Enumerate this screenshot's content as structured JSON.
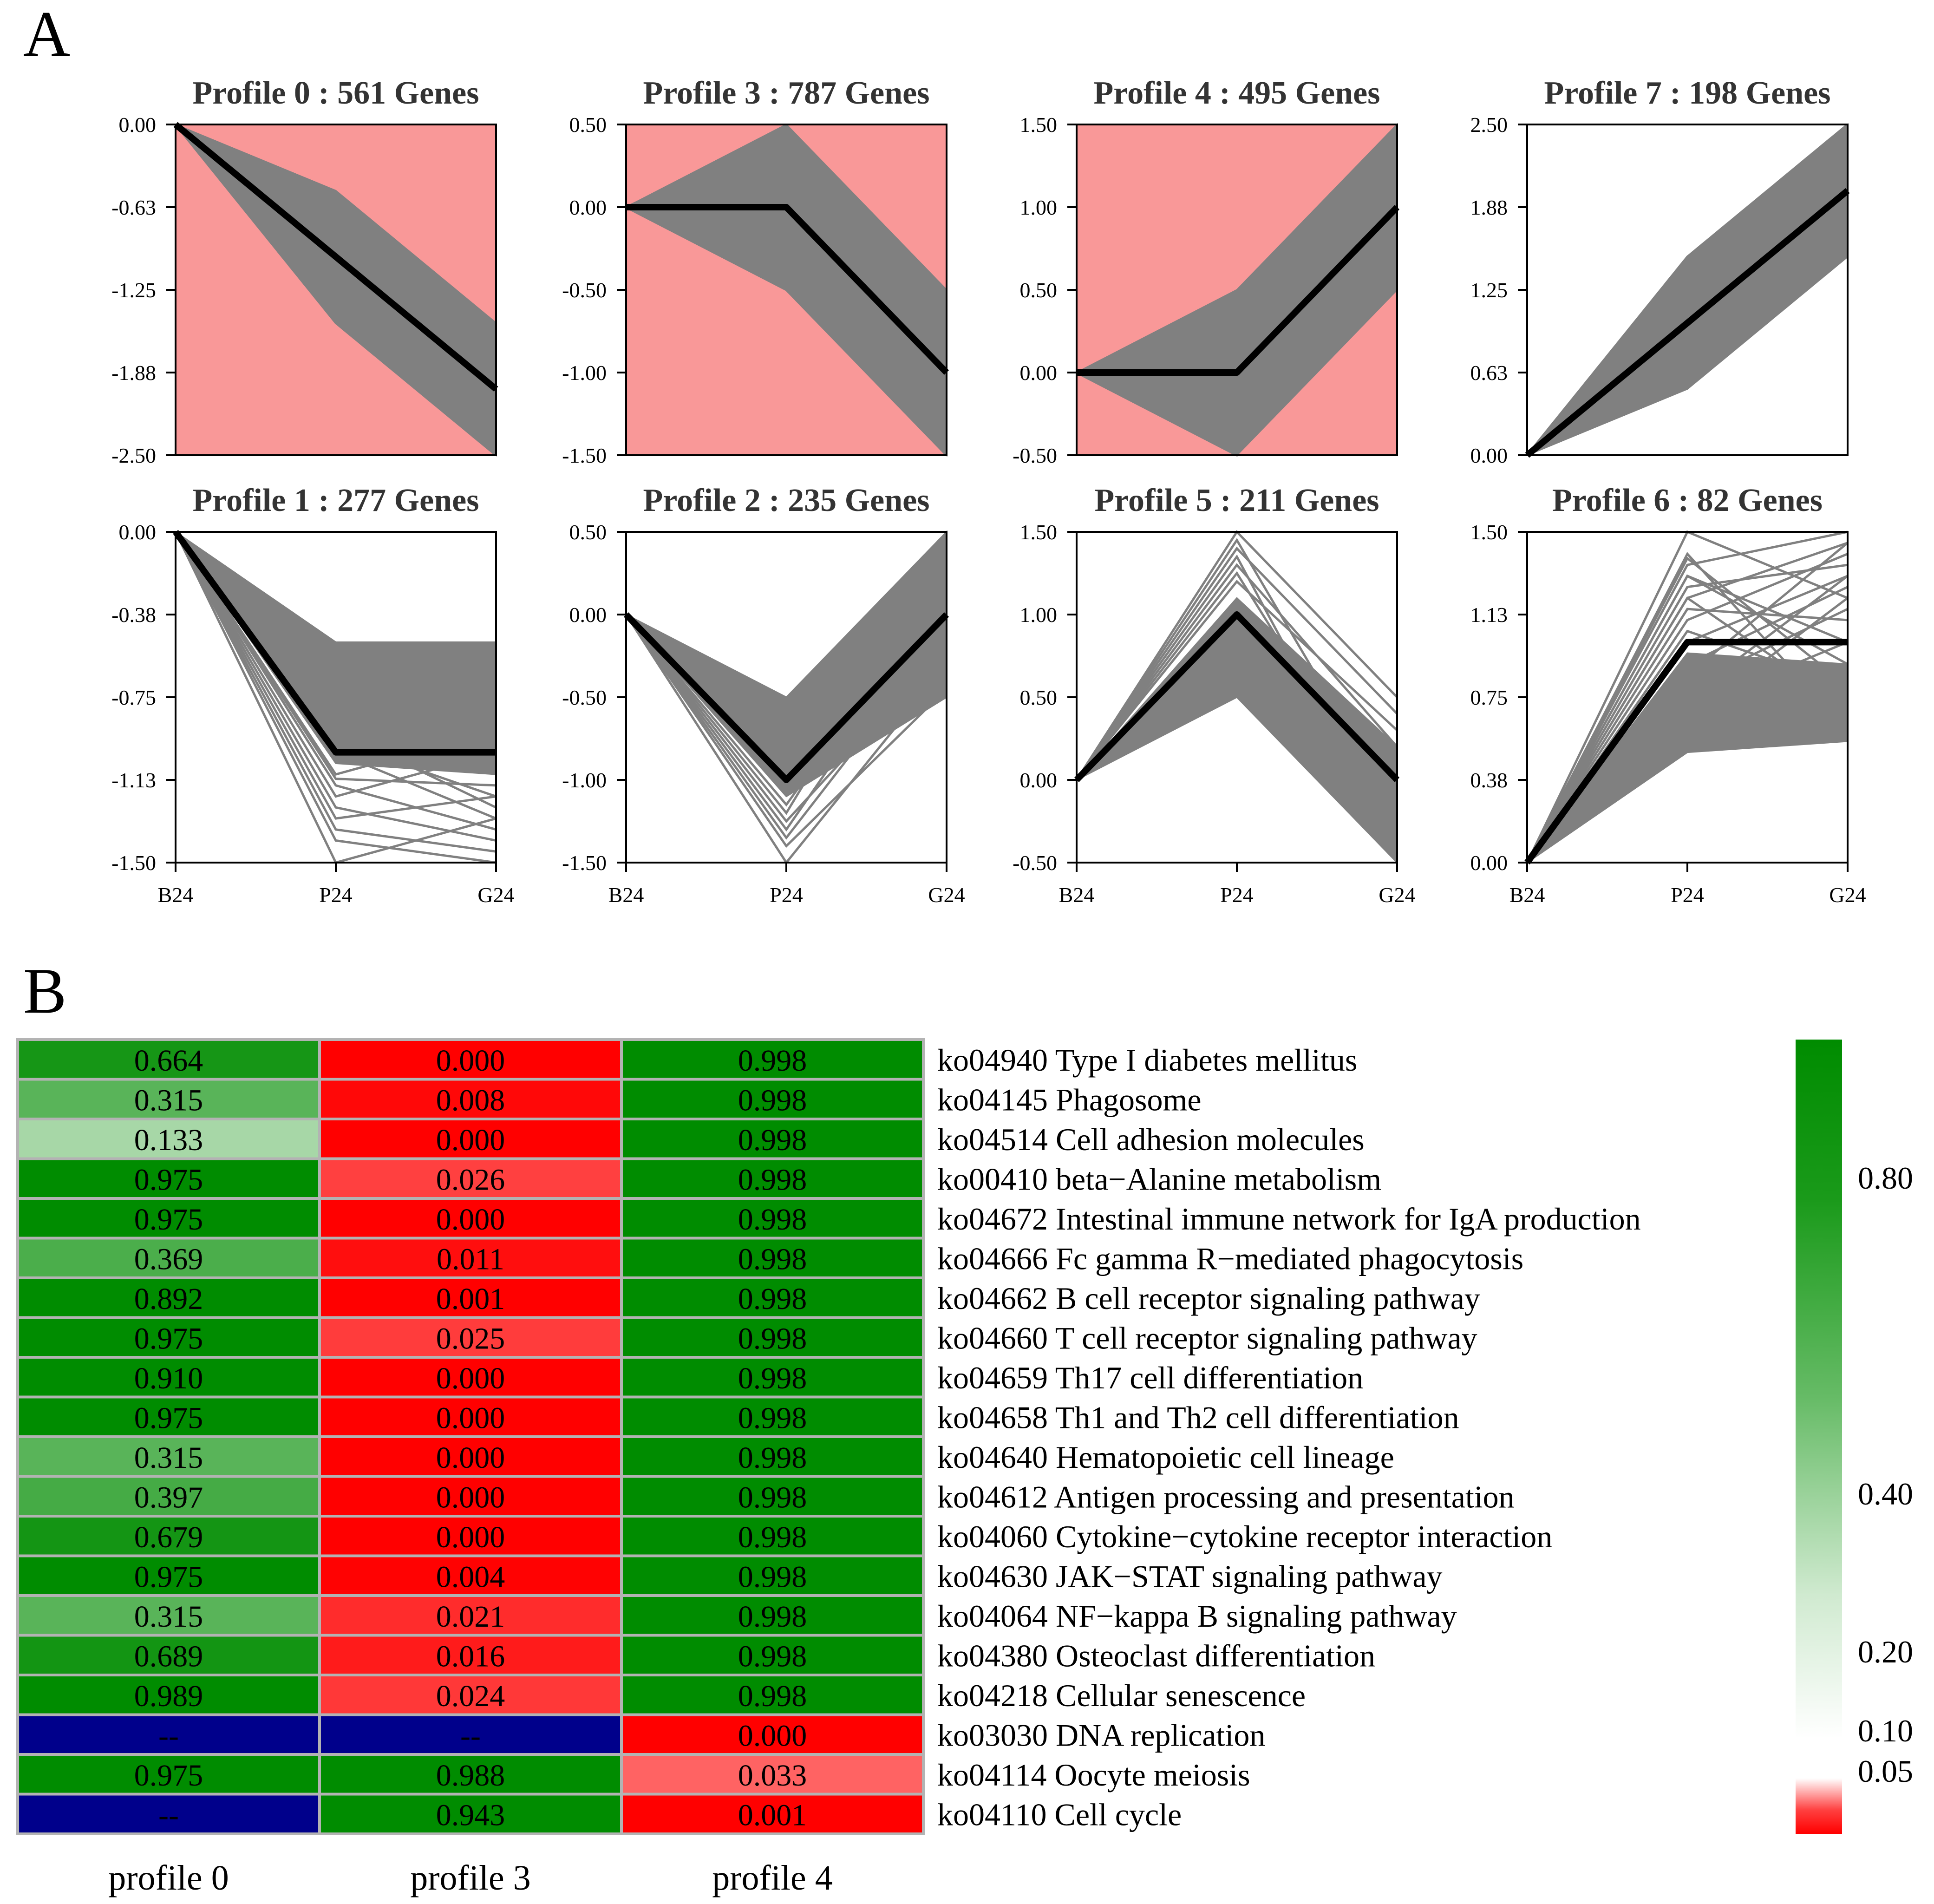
{
  "panel_labels": {
    "a": "A",
    "b": "B"
  },
  "colors": {
    "sig_background": "#f99898",
    "gene_line": "#808080",
    "model_line": "#000000",
    "green_strong": "#008c00",
    "red_strong": "#ff0000",
    "na_blue": "#00008b",
    "cell_border": "#b3b3b3"
  },
  "chart_data": [
    {
      "type": "line",
      "id": "profile-0",
      "title": "Profile 0 : 561 Genes",
      "significant": true,
      "x": [
        "B24",
        "P24",
        "G24"
      ],
      "model": [
        0,
        -1,
        -2
      ],
      "ylim": [
        -2.5,
        0
      ],
      "yticks": [
        "0.00",
        "-0.63",
        "-1.25",
        "-1.88",
        "-2.50"
      ],
      "envelope": {
        "upper": [
          0,
          -0.5,
          -1.5
        ],
        "lower": [
          0,
          -1.5,
          -2.5
        ]
      },
      "lines": [
        [
          0,
          -1.5,
          -2.5
        ],
        [
          0,
          -1.3,
          -2.4
        ],
        [
          0,
          -1.2,
          -2.2
        ],
        [
          0,
          -1.4,
          -1.9
        ],
        [
          0,
          -1.1,
          -2.0
        ],
        [
          0,
          -1.3,
          -2.3
        ],
        [
          0,
          -0.9,
          -2.1
        ],
        [
          0,
          -1.2,
          -2.45
        ]
      ]
    },
    {
      "type": "line",
      "id": "profile-3",
      "title": "Profile 3 : 787 Genes",
      "significant": true,
      "x": [
        "B24",
        "P24",
        "G24"
      ],
      "model": [
        0,
        0,
        -1
      ],
      "ylim": [
        -1.5,
        0.5
      ],
      "yticks": [
        "0.50",
        "0.00",
        "-0.50",
        "-1.00",
        "-1.50"
      ],
      "envelope": {
        "upper": [
          0,
          0.5,
          -0.5
        ],
        "lower": [
          0,
          -0.5,
          -1.5
        ]
      },
      "lines": [
        [
          0,
          -0.5,
          -1.5
        ],
        [
          0,
          -0.45,
          -1.4
        ],
        [
          0,
          -0.4,
          -1.2
        ],
        [
          0,
          0.45,
          -0.7
        ],
        [
          0,
          -0.3,
          -1.3
        ],
        [
          0,
          0.3,
          -0.9
        ],
        [
          0,
          -0.2,
          -1.45
        ]
      ]
    },
    {
      "type": "line",
      "id": "profile-4",
      "title": "Profile 4 : 495 Genes",
      "significant": true,
      "x": [
        "B24",
        "P24",
        "G24"
      ],
      "model": [
        0,
        0,
        1
      ],
      "ylim": [
        -0.5,
        1.5
      ],
      "yticks": [
        "1.50",
        "1.00",
        "0.50",
        "0.00",
        "-0.50"
      ],
      "envelope": {
        "upper": [
          0,
          0.5,
          1.5
        ],
        "lower": [
          0,
          -0.5,
          0.5
        ]
      },
      "lines": [
        [
          0,
          -0.5,
          1.0
        ],
        [
          0,
          -0.45,
          0.7
        ],
        [
          0,
          -0.4,
          1.2
        ],
        [
          0,
          -0.35,
          0.9
        ],
        [
          0,
          -0.2,
          1.4
        ],
        [
          0,
          -0.3,
          0.6
        ],
        [
          0,
          0.3,
          1.45
        ]
      ]
    },
    {
      "type": "line",
      "id": "profile-7",
      "title": "Profile 7 : 198 Genes",
      "significant": false,
      "x": [
        "B24",
        "P24",
        "G24"
      ],
      "model": [
        0,
        1,
        2
      ],
      "ylim": [
        0,
        2.5
      ],
      "yticks": [
        "2.50",
        "1.88",
        "1.25",
        "0.63",
        "0.00"
      ],
      "envelope": {
        "upper": [
          0,
          1.5,
          2.5
        ],
        "lower": [
          0,
          0.5,
          1.5
        ]
      },
      "lines": [
        [
          0,
          1.5,
          2.5
        ],
        [
          0,
          1.4,
          2.2
        ],
        [
          0,
          1.2,
          2.45
        ],
        [
          0,
          1.3,
          1.9
        ],
        [
          0,
          1.1,
          2.3
        ],
        [
          0,
          0.9,
          2.1
        ],
        [
          0,
          1.45,
          2.4
        ]
      ]
    },
    {
      "type": "line",
      "id": "profile-1",
      "title": "Profile 1 : 277 Genes",
      "significant": false,
      "x": [
        "B24",
        "P24",
        "G24"
      ],
      "model": [
        0,
        -1,
        -1
      ],
      "ylim": [
        -1.5,
        0
      ],
      "yticks": [
        "0.00",
        "-0.38",
        "-0.75",
        "-1.13",
        "-1.50"
      ],
      "envelope": {
        "upper": [
          0,
          -0.5,
          -0.5
        ],
        "lower": [
          0,
          -1.05,
          -1.1
        ]
      },
      "lines": [
        [
          0,
          -1.5,
          -1.3
        ],
        [
          0,
          -1.4,
          -1.5
        ],
        [
          0,
          -1.3,
          -1.2
        ],
        [
          0,
          -1.25,
          -1.4
        ],
        [
          0,
          -1.2,
          -1.0
        ],
        [
          0,
          -1.15,
          -1.35
        ],
        [
          0,
          -1.1,
          -0.9
        ],
        [
          0,
          -1.35,
          -1.45
        ],
        [
          0,
          -0.9,
          -1.25
        ],
        [
          0,
          -1.0,
          -1.3
        ],
        [
          0,
          -1.12,
          -1.15
        ],
        [
          0,
          -0.85,
          -0.95
        ],
        [
          0,
          -0.95,
          -1.2
        ]
      ]
    },
    {
      "type": "line",
      "id": "profile-2",
      "title": "Profile 2 : 235 Genes",
      "significant": false,
      "x": [
        "B24",
        "P24",
        "G24"
      ],
      "model": [
        0,
        -1,
        0
      ],
      "ylim": [
        -1.5,
        0.5
      ],
      "yticks": [
        "0.50",
        "0.00",
        "-0.50",
        "-1.00",
        "-1.50"
      ],
      "envelope": {
        "upper": [
          0,
          -0.5,
          0.5
        ],
        "lower": [
          0,
          -1.1,
          -0.5
        ]
      },
      "lines": [
        [
          0,
          -1.5,
          -0.3
        ],
        [
          0,
          -1.4,
          -0.45
        ],
        [
          0,
          -1.3,
          0.1
        ],
        [
          0,
          -1.25,
          -0.2
        ],
        [
          0,
          -1.2,
          0.4
        ],
        [
          0,
          -1.35,
          -0.1
        ],
        [
          0,
          -1.15,
          0.2
        ]
      ]
    },
    {
      "type": "line",
      "id": "profile-5",
      "title": "Profile 5 : 211 Genes",
      "significant": false,
      "x": [
        "B24",
        "P24",
        "G24"
      ],
      "model": [
        0,
        1,
        0
      ],
      "ylim": [
        -0.5,
        1.5
      ],
      "yticks": [
        "1.50",
        "1.00",
        "0.50",
        "0.00",
        "-0.50"
      ],
      "envelope": {
        "upper": [
          0,
          1.1,
          0.2
        ],
        "lower": [
          0,
          0.5,
          -0.5
        ]
      },
      "lines": [
        [
          0,
          1.5,
          0.5
        ],
        [
          0,
          1.4,
          0.4
        ],
        [
          0,
          1.35,
          -0.45
        ],
        [
          0,
          1.3,
          0.2
        ],
        [
          0,
          1.25,
          -0.3
        ],
        [
          0,
          1.2,
          0.3
        ],
        [
          0,
          1.45,
          -0.2
        ]
      ]
    },
    {
      "type": "line",
      "id": "profile-6",
      "title": "Profile 6 : 82 Genes",
      "significant": false,
      "x": [
        "B24",
        "P24",
        "G24"
      ],
      "model": [
        0,
        1,
        1
      ],
      "ylim": [
        0,
        1.5
      ],
      "yticks": [
        "1.50",
        "1.13",
        "0.75",
        "0.38",
        "0.00"
      ],
      "envelope": {
        "upper": [
          0,
          0.95,
          0.9
        ],
        "lower": [
          0,
          0.5,
          0.55
        ]
      },
      "lines": [
        [
          0,
          1.5,
          1.2
        ],
        [
          0,
          1.4,
          0.6
        ],
        [
          0,
          1.35,
          1.5
        ],
        [
          0,
          1.3,
          0.9
        ],
        [
          0,
          1.25,
          1.35
        ],
        [
          0,
          1.2,
          0.7
        ],
        [
          0,
          1.15,
          1.1
        ],
        [
          0,
          1.1,
          1.4
        ],
        [
          0,
          1.05,
          0.8
        ],
        [
          0,
          1.3,
          1.0
        ],
        [
          0,
          1.0,
          1.3
        ],
        [
          0,
          0.9,
          1.25
        ],
        [
          0,
          0.85,
          1.45
        ],
        [
          0,
          0.8,
          1.15
        ],
        [
          0,
          0.75,
          1.3
        ],
        [
          0,
          0.7,
          1.0
        ],
        [
          0,
          0.65,
          1.2
        ],
        [
          0,
          0.6,
          0.9
        ],
        [
          0,
          1.2,
          1.45
        ],
        [
          0,
          1.38,
          0.8
        ]
      ]
    },
    {
      "type": "heatmap",
      "id": "kegg-enrichment",
      "columns": [
        "profile 0",
        "profile 3",
        "profile 4"
      ],
      "rows": [
        "ko04940 Type I diabetes mellitus",
        "ko04145 Phagosome",
        "ko04514 Cell adhesion molecules",
        "ko00410 beta−Alanine metabolism",
        "ko04672 Intestinal immune network for IgA production",
        "ko04666 Fc gamma R−mediated phagocytosis",
        "ko04662 B cell receptor signaling pathway",
        "ko04660 T cell receptor signaling pathway",
        "ko04659 Th17 cell differentiation",
        "ko04658 Th1 and Th2 cell differentiation",
        "ko04640 Hematopoietic cell lineage",
        "ko04612 Antigen processing and presentation",
        "ko04060 Cytokine−cytokine receptor interaction",
        "ko04630 JAK−STAT signaling pathway",
        "ko04064 NF−kappa B signaling pathway",
        "ko04380 Osteoclast differentiation",
        "ko04218 Cellular senescence",
        "ko03030 DNA replication",
        "ko04114 Oocyte meiosis",
        "ko04110 Cell cycle"
      ],
      "values": [
        [
          "0.664",
          "0.000",
          "0.998"
        ],
        [
          "0.315",
          "0.008",
          "0.998"
        ],
        [
          "0.133",
          "0.000",
          "0.998"
        ],
        [
          "0.975",
          "0.026",
          "0.998"
        ],
        [
          "0.975",
          "0.000",
          "0.998"
        ],
        [
          "0.369",
          "0.011",
          "0.998"
        ],
        [
          "0.892",
          "0.001",
          "0.998"
        ],
        [
          "0.975",
          "0.025",
          "0.998"
        ],
        [
          "0.910",
          "0.000",
          "0.998"
        ],
        [
          "0.975",
          "0.000",
          "0.998"
        ],
        [
          "0.315",
          "0.000",
          "0.998"
        ],
        [
          "0.397",
          "0.000",
          "0.998"
        ],
        [
          "0.679",
          "0.000",
          "0.998"
        ],
        [
          "0.975",
          "0.004",
          "0.998"
        ],
        [
          "0.315",
          "0.021",
          "0.998"
        ],
        [
          "0.689",
          "0.016",
          "0.998"
        ],
        [
          "0.989",
          "0.024",
          "0.998"
        ],
        [
          "--",
          "--",
          "0.000"
        ],
        [
          "0.975",
          "0.988",
          "0.033"
        ],
        [
          "--",
          "0.943",
          "0.001"
        ]
      ],
      "colorbar_ticks": [
        "0.80",
        "0.40",
        "0.20",
        "0.10",
        "0.05"
      ]
    }
  ]
}
